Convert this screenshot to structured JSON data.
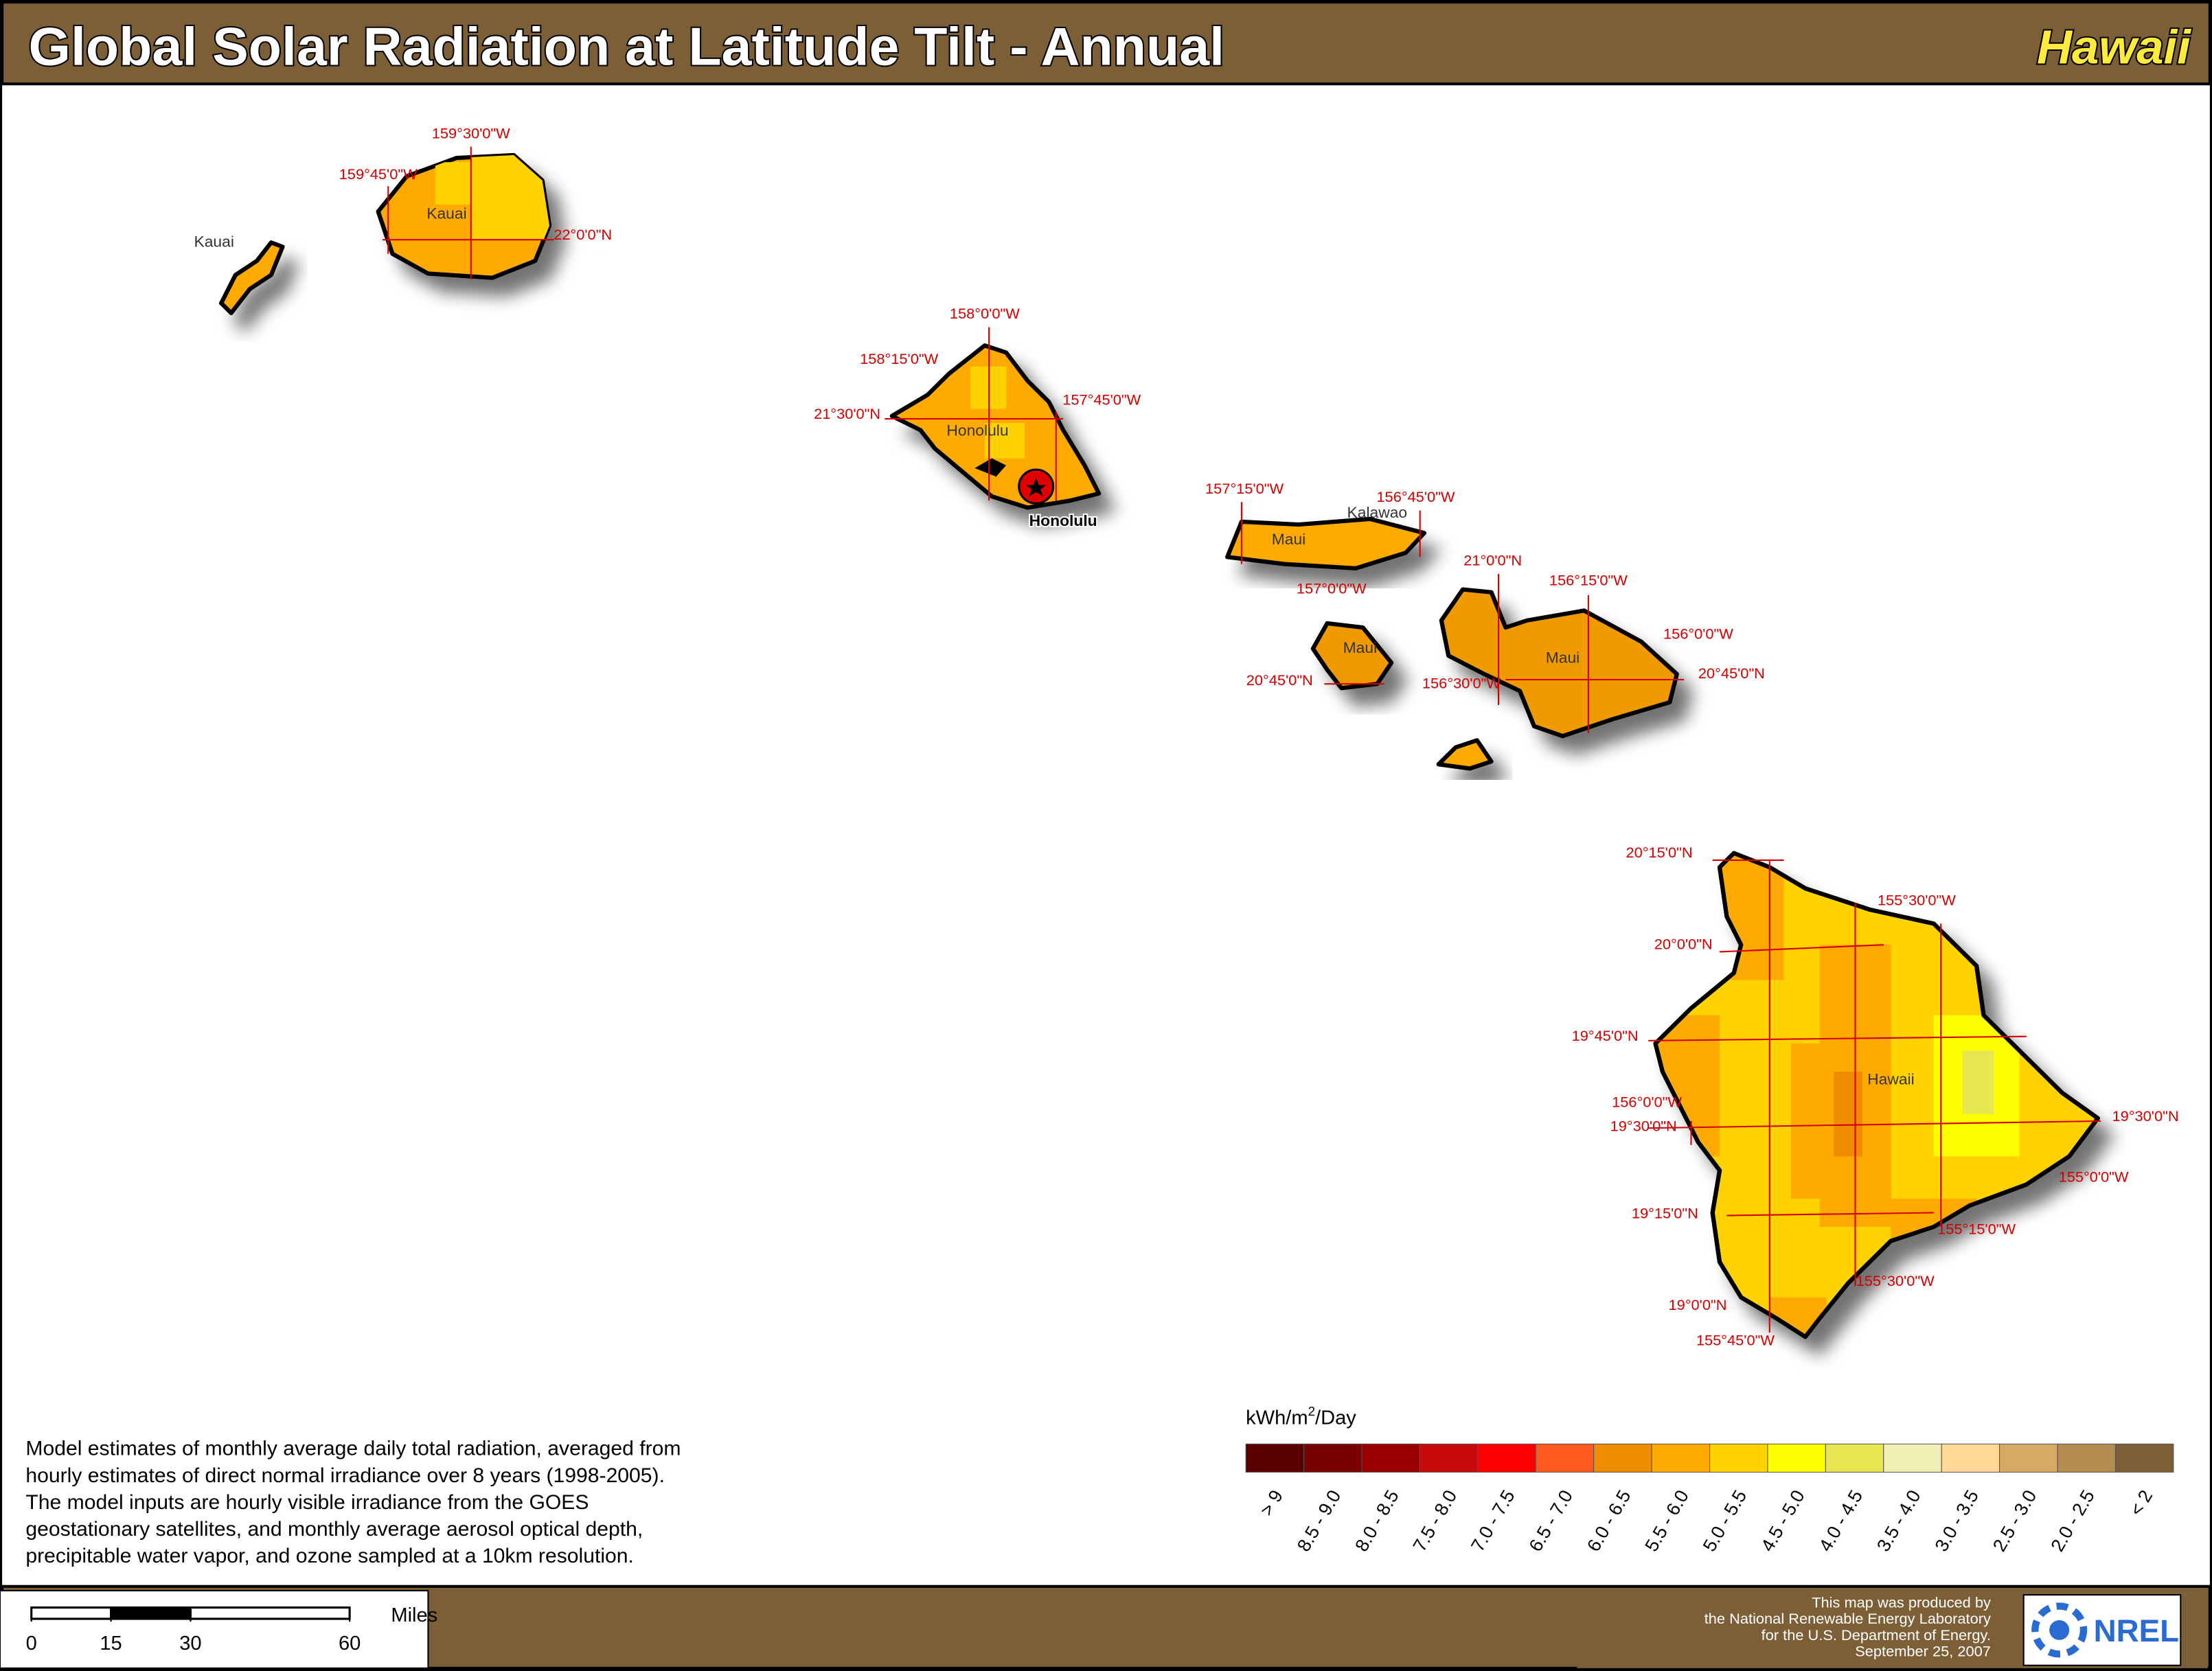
{
  "header": {
    "title": "Global Solar Radiation at Latitude Tilt - Annual",
    "region": "Hawaii"
  },
  "graticule_labels": [
    "159°30'0\"W",
    "159°45'0\"W",
    "22°0'0\"N",
    "158°0'0\"W",
    "158°15'0\"W",
    "21°30'0\"N",
    "157°45'0\"W",
    "157°15'0\"W",
    "156°45'0\"W",
    "21°0'0\"N",
    "156°15'0\"W",
    "157°0'0\"W",
    "156°0'0\"W",
    "20°45'0\"N",
    "156°30'0\"W",
    "20°45'0\"N",
    "20°15'0\"N",
    "155°30'0\"W",
    "20°0'0\"N",
    "19°45'0\"N",
    "156°0'0\"W",
    "19°30'0\"N",
    "19°30'0\"N",
    "155°0'0\"W",
    "19°15'0\"N",
    "155°15'0\"W",
    "155°30'0\"W",
    "19°0'0\"N",
    "155°45'0\"W"
  ],
  "place_labels": [
    "Kauai",
    "Kauai",
    "Honolulu",
    "Kalawao",
    "Maui",
    "Maui",
    "Maui",
    "Hawaii"
  ],
  "city": "Honolulu",
  "legend": {
    "unit_parts": [
      "kWh/m",
      "2",
      "/Day"
    ],
    "classes": [
      {
        "label": "> 9",
        "color": "#5a0000"
      },
      {
        "label": "8.5 - 9.0",
        "color": "#7a0000"
      },
      {
        "label": "8.0 - 8.5",
        "color": "#9a0000"
      },
      {
        "label": "7.5 - 8.0",
        "color": "#c80a0a"
      },
      {
        "label": "7.0 - 7.5",
        "color": "#ff0000"
      },
      {
        "label": "6.5 - 7.0",
        "color": "#ff5a1e"
      },
      {
        "label": "6.0 - 6.5",
        "color": "#f08c00"
      },
      {
        "label": "5.5 - 6.0",
        "color": "#ffaa00"
      },
      {
        "label": "5.0 - 5.5",
        "color": "#ffd200"
      },
      {
        "label": "4.5 - 5.0",
        "color": "#ffff00"
      },
      {
        "label": "4.0 - 4.5",
        "color": "#e6e650"
      },
      {
        "label": "3.5 - 4.0",
        "color": "#f0f0b4"
      },
      {
        "label": "3.0 - 3.5",
        "color": "#ffd796"
      },
      {
        "label": "2.5 - 3.0",
        "color": "#d7aa64"
      },
      {
        "label": "2.0 - 2.5",
        "color": "#b48c50"
      },
      {
        "label": "< 2",
        "color": "#7d5f37"
      }
    ]
  },
  "description": [
    "Model estimates of monthly average daily total radiation, averaged from",
    "hourly estimates of direct normal irradiance over 8 years (1998-2005).",
    "The model inputs are hourly visible irradiance from the GOES",
    "geostationary satellites, and monthly average aerosol optical depth,",
    "precipitable water vapor, and ozone sampled at a 10km resolution."
  ],
  "scale_bar": {
    "unit": "Miles",
    "ticks": [
      0,
      15,
      30,
      60
    ]
  },
  "credit": {
    "lines": [
      "This map was produced by",
      "the National Renewable Energy Laboratory",
      "for the U.S. Department of Energy.",
      "September 25, 2007"
    ],
    "logo": "NREL"
  }
}
